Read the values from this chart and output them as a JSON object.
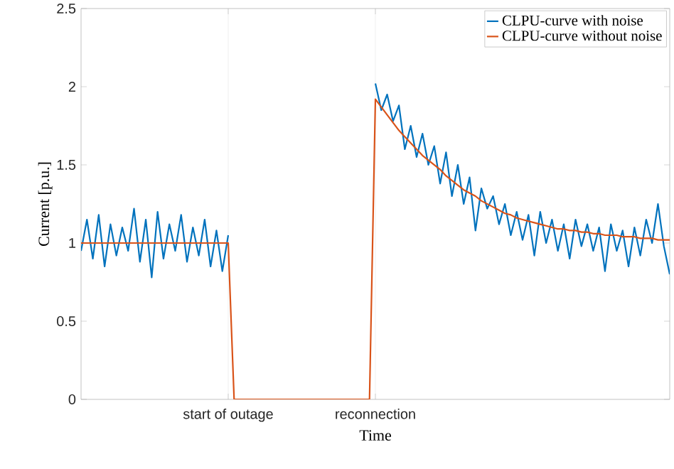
{
  "chart_data": {
    "type": "line",
    "xlabel": "Time",
    "ylabel": "Current [p.u.]",
    "categories": [
      null,
      null,
      null,
      null,
      null,
      null,
      null,
      null,
      null,
      null,
      null,
      null,
      null,
      null,
      null,
      null,
      null,
      null,
      null,
      null,
      null,
      null,
      null,
      null,
      null,
      "start of outage",
      null,
      null,
      null,
      null,
      null,
      null,
      null,
      null,
      null,
      null,
      null,
      null,
      null,
      null,
      null,
      null,
      null,
      null,
      null,
      null,
      null,
      null,
      null,
      null,
      "reconnection",
      null,
      null,
      null,
      null,
      null,
      null,
      null,
      null,
      null,
      null,
      null,
      null,
      null,
      null,
      null,
      null,
      null,
      null,
      null,
      null,
      null,
      null,
      null,
      null,
      null,
      null,
      null,
      null,
      null,
      null,
      null,
      null,
      null,
      null,
      null,
      null,
      null,
      null,
      null,
      null,
      null,
      null,
      null,
      null,
      null,
      null,
      null,
      null,
      null,
      null
    ],
    "ylim": [
      0,
      2.5
    ],
    "yticks": [
      0,
      0.5,
      1,
      1.5,
      2,
      2.5
    ],
    "grid": "x",
    "legend": "top right",
    "series": [
      {
        "name": "CLPU-curve with noise",
        "color": "#0072bd",
        "values": [
          0.95,
          1.15,
          0.9,
          1.18,
          0.85,
          1.12,
          0.92,
          1.1,
          0.95,
          1.22,
          0.88,
          1.15,
          0.78,
          1.2,
          0.9,
          1.12,
          0.95,
          1.18,
          0.88,
          1.1,
          0.92,
          1.15,
          0.85,
          1.08,
          0.82,
          1.05,
          null,
          null,
          null,
          null,
          null,
          null,
          null,
          null,
          null,
          null,
          null,
          null,
          null,
          null,
          null,
          null,
          null,
          null,
          null,
          null,
          null,
          null,
          null,
          null,
          2.02,
          1.85,
          1.95,
          1.78,
          1.88,
          1.6,
          1.75,
          1.55,
          1.7,
          1.5,
          1.62,
          1.38,
          1.58,
          1.3,
          1.5,
          1.25,
          1.42,
          1.08,
          1.35,
          1.22,
          1.3,
          1.12,
          1.25,
          1.05,
          1.2,
          1.02,
          1.18,
          0.92,
          1.2,
          1.0,
          1.15,
          0.95,
          1.12,
          0.9,
          1.15,
          0.98,
          1.12,
          0.95,
          1.1,
          0.82,
          1.12,
          0.95,
          1.08,
          0.85,
          1.1,
          0.92,
          1.15,
          1.0,
          1.25,
          0.98,
          0.8
        ]
      },
      {
        "name": "CLPU-curve without noise",
        "color": "#d95319",
        "values": [
          1,
          1,
          1,
          1,
          1,
          1,
          1,
          1,
          1,
          1,
          1,
          1,
          1,
          1,
          1,
          1,
          1,
          1,
          1,
          1,
          1,
          1,
          1,
          1,
          1,
          1,
          0,
          0,
          0,
          0,
          0,
          0,
          0,
          0,
          0,
          0,
          0,
          0,
          0,
          0,
          0,
          0,
          0,
          0,
          0,
          0,
          0,
          0,
          0,
          0,
          1.92,
          1.87,
          1.82,
          1.77,
          1.72,
          1.68,
          1.64,
          1.6,
          1.56,
          1.53,
          1.5,
          1.47,
          1.43,
          1.4,
          1.37,
          1.34,
          1.32,
          1.3,
          1.27,
          1.25,
          1.23,
          1.21,
          1.19,
          1.18,
          1.16,
          1.15,
          1.14,
          1.13,
          1.12,
          1.11,
          1.1,
          1.09,
          1.09,
          1.08,
          1.08,
          1.07,
          1.07,
          1.06,
          1.06,
          1.05,
          1.05,
          1.05,
          1.04,
          1.04,
          1.04,
          1.03,
          1.03,
          1.03,
          1.02,
          1.02,
          1.02
        ]
      }
    ]
  }
}
